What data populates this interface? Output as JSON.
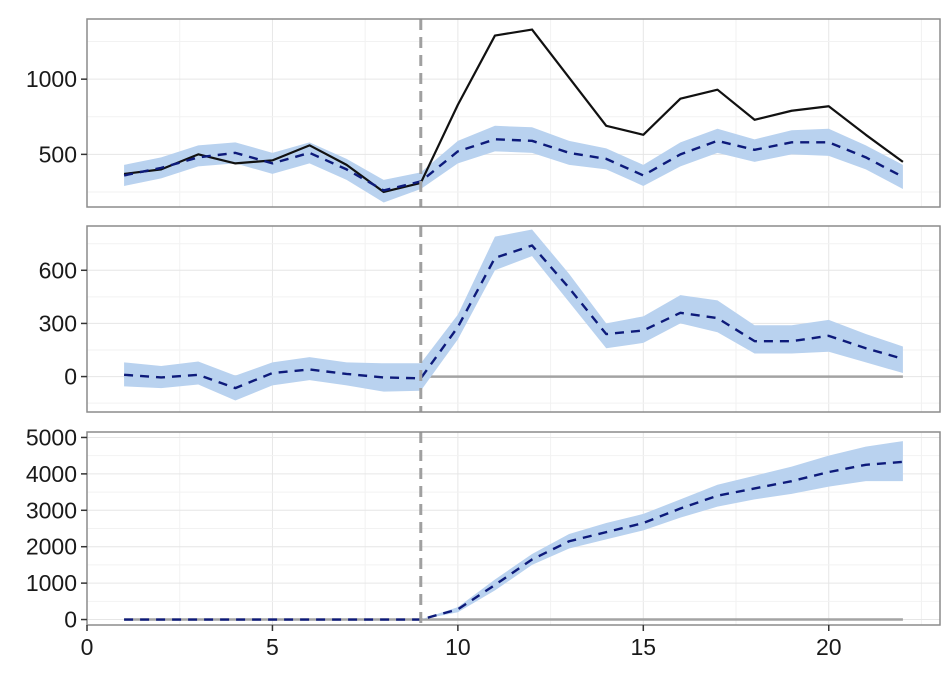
{
  "colors": {
    "observed": "#111111",
    "counterfactual": "#0d1a7a",
    "band": "#b9d2ef",
    "intervention": "#a0a0a0",
    "zero_line": "#a3a3a3",
    "panel_border": "#8c8c8c",
    "grid_major": "#e6e6e6",
    "grid_minor": "#f2f2f2"
  },
  "chart_data": [
    {
      "type": "line",
      "title": "",
      "xlabel": "",
      "ylabel": "",
      "xlim": [
        0,
        23
      ],
      "ylim": [
        150,
        1400
      ],
      "yticks": [
        500,
        1000
      ],
      "grid": true,
      "intervention_x": 9,
      "x": [
        1,
        2,
        3,
        4,
        5,
        6,
        7,
        8,
        9,
        10,
        11,
        12,
        13,
        14,
        15,
        16,
        17,
        18,
        19,
        20,
        21,
        22
      ],
      "series": [
        {
          "role": "observed",
          "style": "solid",
          "values": [
            370,
            400,
            500,
            440,
            460,
            560,
            430,
            250,
            310,
            830,
            1290,
            1330,
            1010,
            690,
            630,
            870,
            930,
            730,
            790,
            820,
            630,
            450
          ]
        },
        {
          "role": "prediction",
          "style": "dashed",
          "values": [
            360,
            410,
            480,
            510,
            440,
            510,
            400,
            260,
            320,
            520,
            600,
            590,
            510,
            470,
            360,
            500,
            590,
            530,
            580,
            580,
            480,
            350
          ]
        },
        {
          "role": "interval_low",
          "values": [
            290,
            340,
            420,
            440,
            370,
            440,
            330,
            180,
            270,
            440,
            520,
            510,
            430,
            400,
            290,
            420,
            510,
            450,
            500,
            490,
            400,
            270
          ]
        },
        {
          "role": "interval_high",
          "values": [
            430,
            480,
            560,
            580,
            510,
            580,
            470,
            330,
            380,
            590,
            690,
            680,
            590,
            540,
            430,
            580,
            670,
            600,
            660,
            670,
            560,
            430
          ]
        }
      ]
    },
    {
      "type": "line",
      "title": "",
      "xlabel": "",
      "ylabel": "",
      "xlim": [
        0,
        23
      ],
      "ylim": [
        -200,
        850
      ],
      "yticks": [
        0,
        300,
        600
      ],
      "grid": true,
      "intervention_x": 9,
      "zero_line": true,
      "x": [
        1,
        2,
        3,
        4,
        5,
        6,
        7,
        8,
        9,
        10,
        11,
        12,
        13,
        14,
        15,
        16,
        17,
        18,
        19,
        20,
        21,
        22
      ],
      "series": [
        {
          "role": "prediction",
          "style": "dashed",
          "values": [
            10,
            -5,
            10,
            -65,
            20,
            40,
            15,
            -5,
            -10,
            280,
            670,
            740,
            500,
            240,
            260,
            360,
            330,
            200,
            200,
            230,
            160,
            100
          ]
        },
        {
          "role": "interval_low",
          "values": [
            -55,
            -65,
            -45,
            -135,
            -50,
            -20,
            -50,
            -85,
            -80,
            210,
            600,
            680,
            420,
            160,
            190,
            300,
            250,
            130,
            130,
            140,
            80,
            20
          ]
        },
        {
          "role": "interval_high",
          "values": [
            80,
            60,
            85,
            5,
            80,
            110,
            80,
            75,
            75,
            350,
            790,
            830,
            580,
            300,
            340,
            460,
            430,
            290,
            290,
            320,
            240,
            170
          ]
        }
      ]
    },
    {
      "type": "line",
      "title": "",
      "xlabel": "",
      "ylabel": "",
      "xlim": [
        0,
        23
      ],
      "ylim": [
        -150,
        5150
      ],
      "xticks": [
        0,
        5,
        10,
        15,
        20
      ],
      "yticks": [
        0,
        1000,
        2000,
        3000,
        4000,
        5000
      ],
      "grid": true,
      "intervention_x": 9,
      "zero_line": true,
      "x": [
        1,
        2,
        3,
        4,
        5,
        6,
        7,
        8,
        9,
        10,
        11,
        12,
        13,
        14,
        15,
        16,
        17,
        18,
        19,
        20,
        21,
        22
      ],
      "series": [
        {
          "role": "prediction",
          "style": "dashed",
          "values": [
            0,
            0,
            0,
            0,
            0,
            0,
            0,
            0,
            0,
            280,
            950,
            1650,
            2150,
            2400,
            2650,
            3050,
            3400,
            3600,
            3800,
            4050,
            4250,
            4330
          ]
        },
        {
          "role": "interval_low",
          "values": [
            0,
            0,
            0,
            0,
            0,
            0,
            0,
            0,
            0,
            200,
            800,
            1500,
            1950,
            2200,
            2450,
            2800,
            3100,
            3300,
            3450,
            3650,
            3800,
            3800
          ]
        },
        {
          "role": "interval_high",
          "values": [
            0,
            0,
            0,
            0,
            0,
            0,
            0,
            0,
            0,
            340,
            1100,
            1800,
            2350,
            2650,
            2900,
            3300,
            3700,
            3950,
            4200,
            4500,
            4750,
            4900
          ]
        }
      ]
    }
  ]
}
